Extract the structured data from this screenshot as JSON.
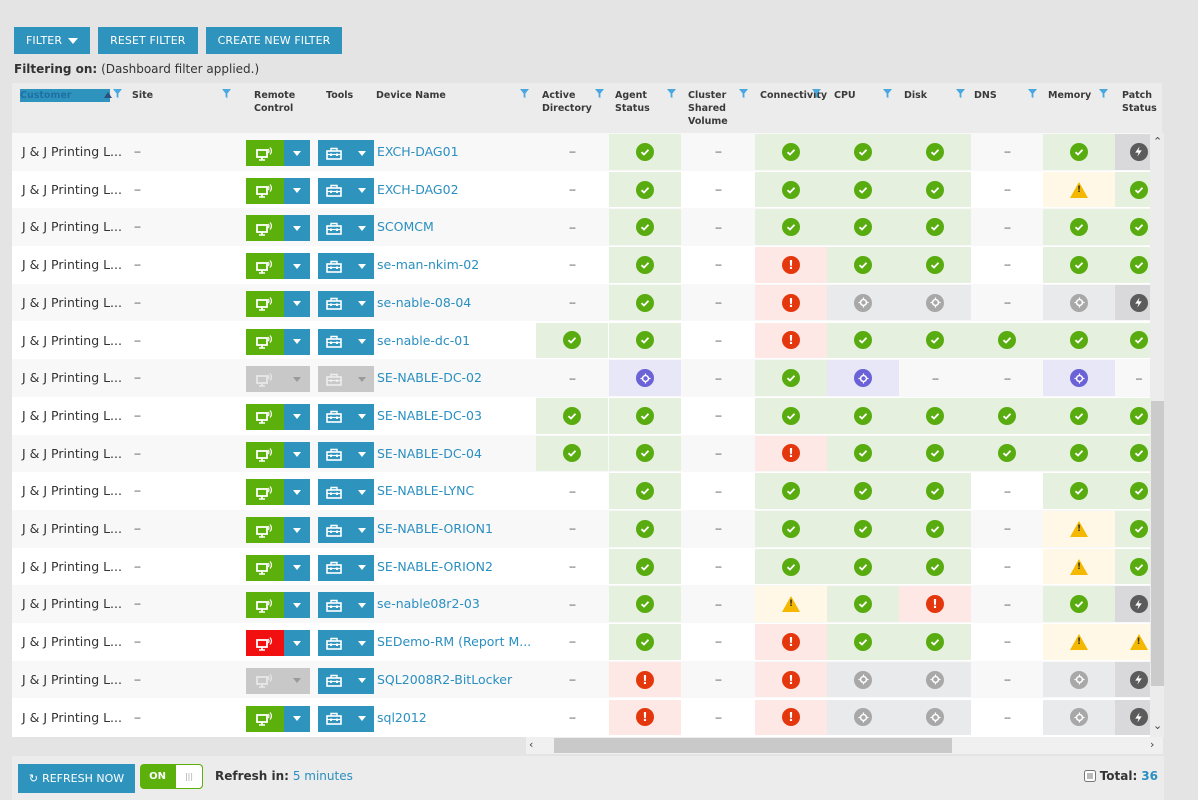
{
  "toolbar": {
    "filter_label": "FILTER",
    "reset_label": "RESET FILTER",
    "create_label": "CREATE NEW FILTER"
  },
  "filtering": {
    "label": "Filtering on:",
    "value": "(Dashboard filter applied.)"
  },
  "columns": [
    {
      "key": "customer",
      "label": "Customer"
    },
    {
      "key": "site",
      "label": "Site"
    },
    {
      "key": "remote",
      "label": "Remote Control"
    },
    {
      "key": "tools",
      "label": "Tools"
    },
    {
      "key": "device",
      "label": "Device Name"
    },
    {
      "key": "ad",
      "label": "Active Directory"
    },
    {
      "key": "agent",
      "label": "Agent Status"
    },
    {
      "key": "csv",
      "label": "Cluster Shared Volume"
    },
    {
      "key": "conn",
      "label": "Connectivity"
    },
    {
      "key": "cpu",
      "label": "CPU"
    },
    {
      "key": "disk",
      "label": "Disk"
    },
    {
      "key": "dns",
      "label": "DNS"
    },
    {
      "key": "memory",
      "label": "Memory"
    },
    {
      "key": "patch",
      "label": "Patch Status"
    }
  ],
  "status_colors": {
    "ok": "#58ac0f",
    "error": "#e5370e",
    "warning": "#f5b800",
    "disabled": "#a8a8a8",
    "pending": "#6a62d6",
    "patch": "#5b5b5b",
    "accent": "#2f94bd"
  },
  "rows": [
    {
      "customer": "J & J Printing L...",
      "site": "--",
      "remote": "green",
      "tools": "blue",
      "device": "EXCH-DAG01",
      "ad": "none",
      "agent": "ok",
      "csv": "none",
      "conn": "ok",
      "cpu": "ok",
      "disk": "ok",
      "dns": "none",
      "memory": "ok",
      "patch": "bolt"
    },
    {
      "customer": "J & J Printing L...",
      "site": "--",
      "remote": "green",
      "tools": "blue",
      "device": "EXCH-DAG02",
      "ad": "none",
      "agent": "ok",
      "csv": "none",
      "conn": "ok",
      "cpu": "ok",
      "disk": "ok",
      "dns": "none",
      "memory": "warn",
      "patch": "ok"
    },
    {
      "customer": "J & J Printing L...",
      "site": "--",
      "remote": "green",
      "tools": "blue",
      "device": "SCOMCM",
      "ad": "none",
      "agent": "ok",
      "csv": "none",
      "conn": "ok",
      "cpu": "ok",
      "disk": "ok",
      "dns": "none",
      "memory": "ok",
      "patch": "ok"
    },
    {
      "customer": "J & J Printing L...",
      "site": "--",
      "remote": "green",
      "tools": "blue",
      "device": "se-man-nkim-02",
      "ad": "none",
      "agent": "ok",
      "csv": "none",
      "conn": "err",
      "cpu": "ok",
      "disk": "ok",
      "dns": "none",
      "memory": "ok",
      "patch": "ok"
    },
    {
      "customer": "J & J Printing L...",
      "site": "--",
      "remote": "green",
      "tools": "blue",
      "device": "se-nable-08-04",
      "ad": "none",
      "agent": "ok",
      "csv": "none",
      "conn": "err",
      "cpu": "gear",
      "disk": "gear",
      "dns": "none",
      "memory": "gear",
      "patch": "bolt"
    },
    {
      "customer": "J & J Printing L...",
      "site": "--",
      "remote": "green",
      "tools": "blue",
      "device": "se-nable-dc-01",
      "ad": "ok",
      "agent": "ok",
      "csv": "none",
      "conn": "err",
      "cpu": "ok",
      "disk": "ok",
      "dns": "ok",
      "memory": "ok",
      "patch": "ok"
    },
    {
      "customer": "J & J Printing L...",
      "site": "--",
      "remote": "grey",
      "tools": "grey",
      "device": "SE-NABLE-DC-02",
      "ad": "none",
      "agent": "pgear",
      "csv": "none",
      "conn": "ok",
      "cpu": "pgear",
      "disk": "none",
      "dns": "none",
      "memory": "pgear",
      "patch": "none"
    },
    {
      "customer": "J & J Printing L...",
      "site": "--",
      "remote": "green",
      "tools": "blue",
      "device": "SE-NABLE-DC-03",
      "ad": "ok",
      "agent": "ok",
      "csv": "none",
      "conn": "ok",
      "cpu": "ok",
      "disk": "ok",
      "dns": "ok",
      "memory": "ok",
      "patch": "ok"
    },
    {
      "customer": "J & J Printing L...",
      "site": "--",
      "remote": "green",
      "tools": "blue",
      "device": "SE-NABLE-DC-04",
      "ad": "ok",
      "agent": "ok",
      "csv": "none",
      "conn": "err",
      "cpu": "ok",
      "disk": "ok",
      "dns": "ok",
      "memory": "ok",
      "patch": "ok"
    },
    {
      "customer": "J & J Printing L...",
      "site": "--",
      "remote": "green",
      "tools": "blue",
      "device": "SE-NABLE-LYNC",
      "ad": "none",
      "agent": "ok",
      "csv": "none",
      "conn": "ok",
      "cpu": "ok",
      "disk": "ok",
      "dns": "none",
      "memory": "ok",
      "patch": "ok"
    },
    {
      "customer": "J & J Printing L...",
      "site": "--",
      "remote": "green",
      "tools": "blue",
      "device": "SE-NABLE-ORION1",
      "ad": "none",
      "agent": "ok",
      "csv": "none",
      "conn": "ok",
      "cpu": "ok",
      "disk": "ok",
      "dns": "none",
      "memory": "warn",
      "patch": "ok"
    },
    {
      "customer": "J & J Printing L...",
      "site": "--",
      "remote": "green",
      "tools": "blue",
      "device": "SE-NABLE-ORION2",
      "ad": "none",
      "agent": "ok",
      "csv": "none",
      "conn": "ok",
      "cpu": "ok",
      "disk": "ok",
      "dns": "none",
      "memory": "warn",
      "patch": "ok"
    },
    {
      "customer": "J & J Printing L...",
      "site": "--",
      "remote": "green",
      "tools": "blue",
      "device": "se-nable08r2-03",
      "ad": "none",
      "agent": "ok",
      "csv": "none",
      "conn": "warn",
      "cpu": "ok",
      "disk": "err",
      "dns": "none",
      "memory": "ok",
      "patch": "bolt"
    },
    {
      "customer": "J & J Printing L...",
      "site": "--",
      "remote": "red",
      "tools": "blue",
      "device": "SEDemo-RM (Report M...",
      "ad": "none",
      "agent": "ok",
      "csv": "none",
      "conn": "err",
      "cpu": "ok",
      "disk": "ok",
      "dns": "none",
      "memory": "warn",
      "patch": "warn"
    },
    {
      "customer": "J & J Printing L...",
      "site": "--",
      "remote": "grey",
      "tools": "blue",
      "device": "SQL2008R2-BitLocker",
      "ad": "none",
      "agent": "err",
      "csv": "none",
      "conn": "err",
      "cpu": "gear",
      "disk": "gear",
      "dns": "none",
      "memory": "gear",
      "patch": "bolt"
    },
    {
      "customer": "J & J Printing L...",
      "site": "--",
      "remote": "green",
      "tools": "blue",
      "device": "sql2012",
      "ad": "none",
      "agent": "err",
      "csv": "none",
      "conn": "err",
      "cpu": "gear",
      "disk": "gear",
      "dns": "none",
      "memory": "gear",
      "patch": "bolt"
    }
  ],
  "footer": {
    "refresh_label": "REFRESH NOW",
    "toggle_label": "ON",
    "refresh_in_label": "Refresh in:",
    "refresh_in_value": "5 minutes",
    "total_label": "Total:",
    "total_value": "36"
  },
  "dash": "--"
}
